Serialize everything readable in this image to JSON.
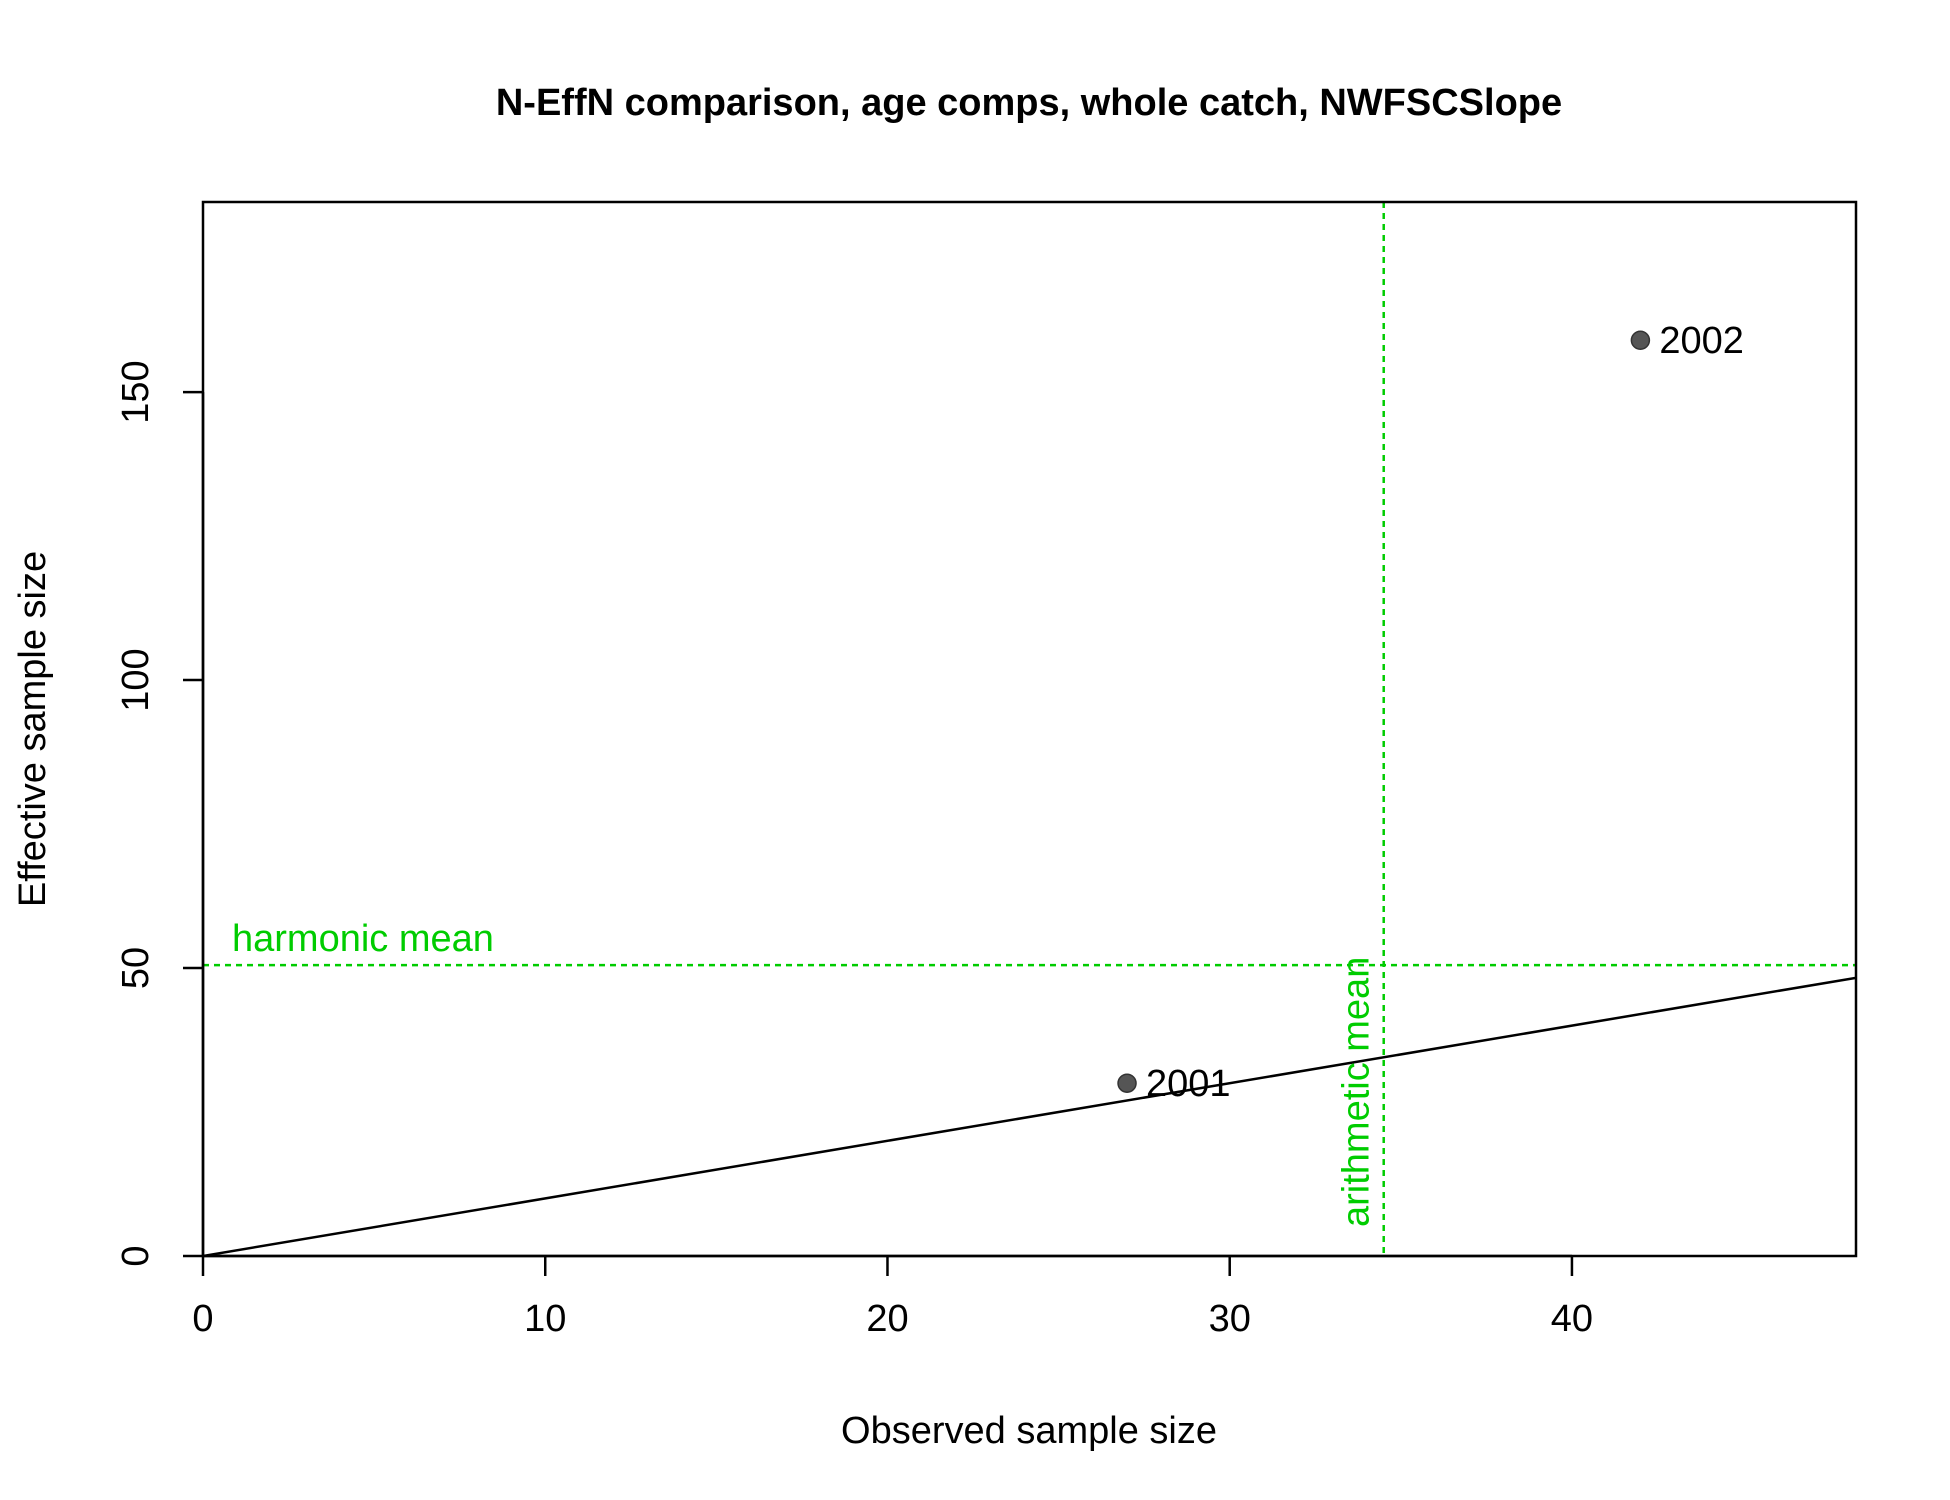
{
  "chart_data": {
    "type": "scatter",
    "title": "N-EffN comparison, age comps, whole catch, NWFSCSlope",
    "xlabel": "Observed sample size",
    "ylabel": "Effective sample size",
    "xlim": [
      0,
      48.3
    ],
    "ylim": [
      0,
      183
    ],
    "xticks": [
      0,
      10,
      20,
      30,
      40
    ],
    "yticks": [
      0,
      50,
      100,
      150
    ],
    "grid": false,
    "points": [
      {
        "x": 27,
        "y": 30,
        "label": "2001"
      },
      {
        "x": 42,
        "y": 159,
        "label": "2002"
      }
    ],
    "reference_lines": {
      "identity": {
        "slope": 1,
        "intercept": 0
      },
      "harmonic_mean": {
        "y": 50.5,
        "label": "harmonic mean"
      },
      "arithmetic_mean": {
        "x": 34.5,
        "label": "arithmetic mean"
      }
    },
    "colors": {
      "points": "#555555",
      "identity_line": "#000000",
      "mean_lines": "#00CC00"
    }
  }
}
